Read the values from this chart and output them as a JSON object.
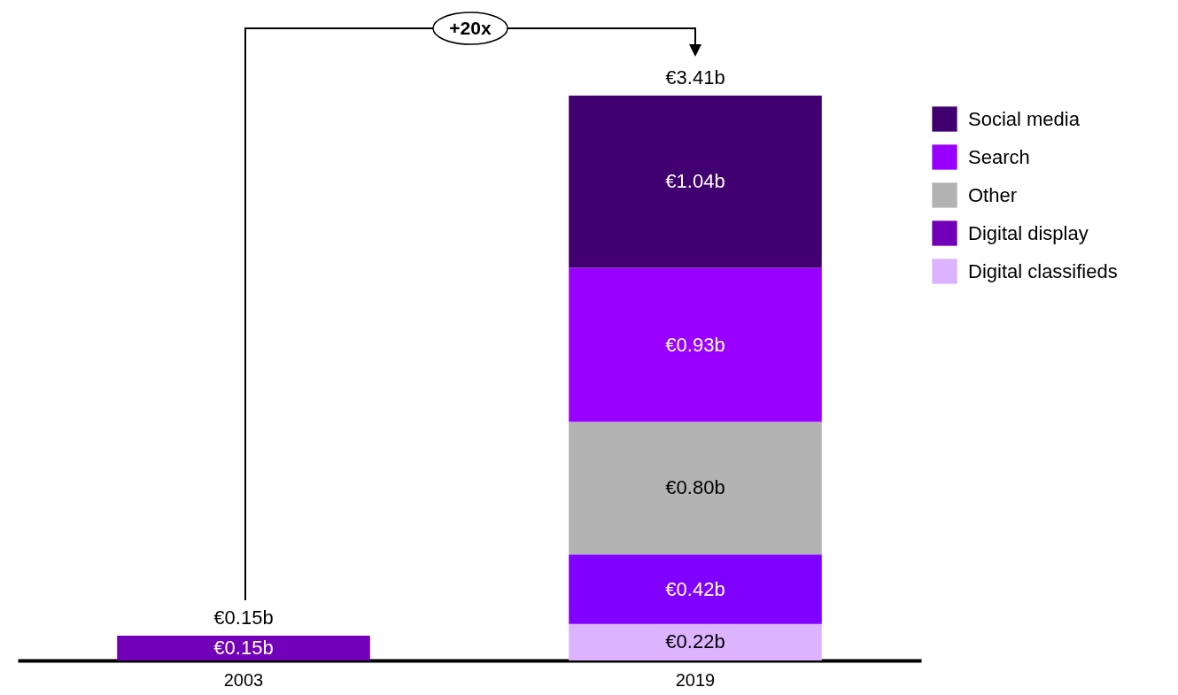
{
  "chart_data": {
    "type": "bar",
    "stacked": true,
    "categories": [
      "2003",
      "2019"
    ],
    "series": [
      {
        "name": "Digital classifieds",
        "color": "#dbb3ff",
        "values": [
          null,
          0.22
        ],
        "value_labels": [
          null,
          "€0.22b"
        ]
      },
      {
        "name": "Digital display",
        "color": "#7300b9",
        "colors": [
          "#7300b9",
          "#8000ff"
        ],
        "values": [
          0.15,
          0.42
        ],
        "value_labels": [
          "€0.15b",
          "€0.42b"
        ]
      },
      {
        "name": "Other",
        "color": "#b3b3b3",
        "values": [
          null,
          0.8
        ],
        "value_labels": [
          null,
          "€0.80b"
        ]
      },
      {
        "name": "Search",
        "color": "#9900ff",
        "values": [
          null,
          0.93
        ],
        "value_labels": [
          null,
          "€0.93b"
        ]
      },
      {
        "name": "Social media",
        "color": "#400070",
        "values": [
          null,
          1.04
        ],
        "value_labels": [
          null,
          "€1.04b"
        ]
      }
    ],
    "totals": [
      "€0.15b",
      "€3.41b"
    ],
    "legend": "right",
    "annotations": [
      "+20x"
    ]
  }
}
